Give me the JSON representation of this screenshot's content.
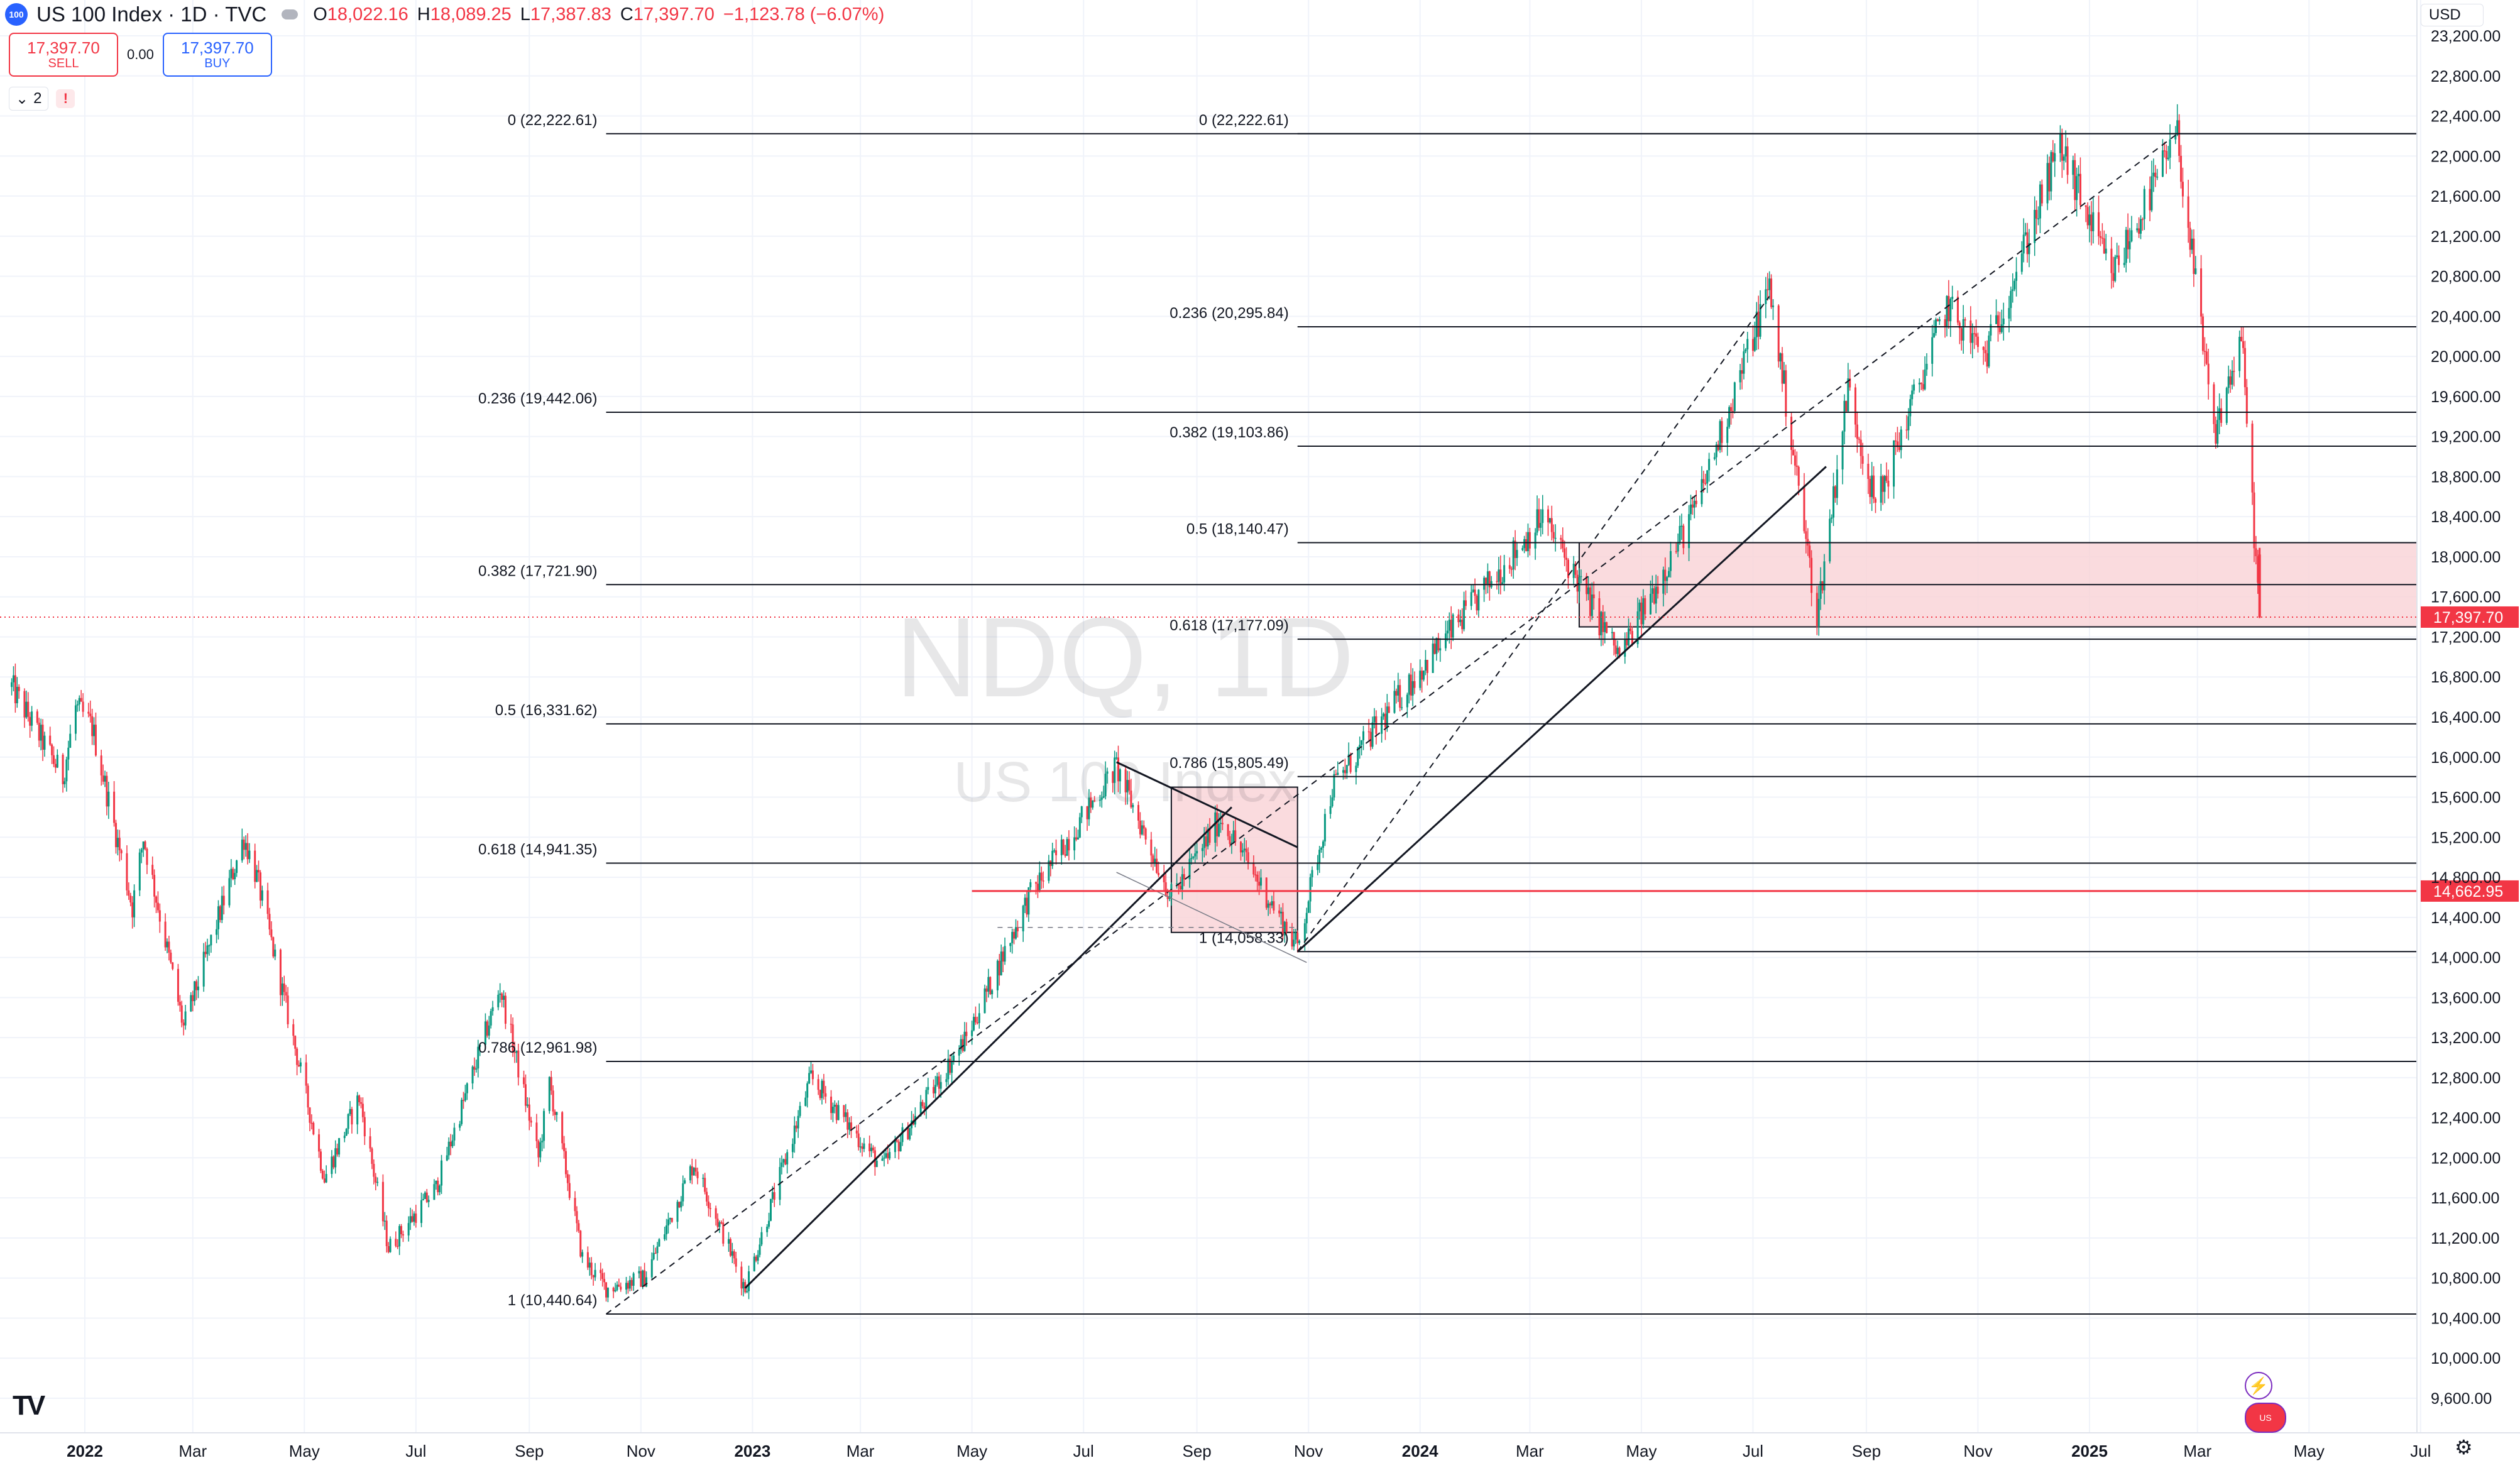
{
  "header": {
    "logo_text": "100",
    "symbol": "US 100 Index · 1D · TVC",
    "ohlc": [
      {
        "k": "O",
        "v": "18,022.16"
      },
      {
        "k": "H",
        "v": "18,089.25"
      },
      {
        "k": "L",
        "v": "17,387.83"
      },
      {
        "k": "C",
        "v": "17,397.70"
      }
    ],
    "change": "−1,123.78 (−6.07%)"
  },
  "trade": {
    "sell_price": "17,397.70",
    "sell_label": "SELL",
    "spread": "0.00",
    "buy_price": "17,397.70",
    "buy_label": "BUY"
  },
  "indicator_toggle": {
    "count": "2",
    "chevron": "chevron-down-icon",
    "warning": "!"
  },
  "currency": "USD",
  "watermark": {
    "main": "NDQ, 1D",
    "sub": "US 100 Index"
  },
  "colors": {
    "up": "#089981",
    "down": "#f23645",
    "current_price": "#f23645",
    "zone_fill": "#f9d2d6",
    "fib_line": "#131722",
    "grid": "#f0f3fa"
  },
  "icons": [
    "tradingview-logo-icon",
    "settings-gear-icon",
    "lightning-icon",
    "us-flag-icon",
    "chevron-down-icon",
    "warning-icon"
  ],
  "chart_data": {
    "type": "candlestick",
    "y_range": [
      9400,
      23200
    ],
    "y_ticks": [
      "9,600.00",
      "10,000.00",
      "10,400.00",
      "10,800.00",
      "11,200.00",
      "11,600.00",
      "12,000.00",
      "12,400.00",
      "12,800.00",
      "13,200.00",
      "13,600.00",
      "14,000.00",
      "14,400.00",
      "14,800.00",
      "15,200.00",
      "15,600.00",
      "16,000.00",
      "16,400.00",
      "16,800.00",
      "17,200.00",
      "17,600.00",
      "18,000.00",
      "18,400.00",
      "18,800.00",
      "19,200.00",
      "19,600.00",
      "20,000.00",
      "20,400.00",
      "20,800.00",
      "21,200.00",
      "21,600.00",
      "22,000.00",
      "22,400.00",
      "22,800.00",
      "23,200.00"
    ],
    "x_ticks": [
      {
        "label": "2022",
        "date": "2022-01-01",
        "bold": true
      },
      {
        "label": "Mar",
        "date": "2022-03-01"
      },
      {
        "label": "May",
        "date": "2022-05-01"
      },
      {
        "label": "Jul",
        "date": "2022-07-01"
      },
      {
        "label": "Sep",
        "date": "2022-09-01"
      },
      {
        "label": "Nov",
        "date": "2022-11-01"
      },
      {
        "label": "2023",
        "date": "2023-01-01",
        "bold": true
      },
      {
        "label": "Mar",
        "date": "2023-03-01"
      },
      {
        "label": "May",
        "date": "2023-05-01"
      },
      {
        "label": "Jul",
        "date": "2023-07-01"
      },
      {
        "label": "Sep",
        "date": "2023-09-01"
      },
      {
        "label": "Nov",
        "date": "2023-11-01"
      },
      {
        "label": "2024",
        "date": "2024-01-01",
        "bold": true
      },
      {
        "label": "Mar",
        "date": "2024-03-01"
      },
      {
        "label": "May",
        "date": "2024-05-01"
      },
      {
        "label": "Jul",
        "date": "2024-07-01"
      },
      {
        "label": "Sep",
        "date": "2024-09-01"
      },
      {
        "label": "Nov",
        "date": "2024-11-01"
      },
      {
        "label": "2025",
        "date": "2025-01-01",
        "bold": true
      },
      {
        "label": "Mar",
        "date": "2025-03-01"
      },
      {
        "label": "May",
        "date": "2025-05-01"
      },
      {
        "label": "Jul",
        "date": "2025-07-01"
      }
    ],
    "price_path": [
      [
        "2021-11-22",
        16700
      ],
      [
        "2021-12-20",
        15800
      ],
      [
        "2021-12-27",
        16500
      ],
      [
        "2022-01-05",
        16300
      ],
      [
        "2022-01-27",
        14500
      ],
      [
        "2022-02-02",
        15200
      ],
      [
        "2022-02-24",
        13300
      ],
      [
        "2022-03-29",
        15200
      ],
      [
        "2022-04-05",
        14800
      ],
      [
        "2022-05-12",
        11800
      ],
      [
        "2022-05-31",
        12600
      ],
      [
        "2022-06-16",
        11100
      ],
      [
        "2022-07-12",
        11700
      ],
      [
        "2022-08-16",
        13700
      ],
      [
        "2022-09-06",
        12000
      ],
      [
        "2022-09-12",
        12750
      ],
      [
        "2022-09-30",
        11000
      ],
      [
        "2022-10-13",
        10700
      ],
      [
        "2022-11-03",
        10800
      ],
      [
        "2022-11-30",
        11950
      ],
      [
        "2022-12-28",
        10700
      ],
      [
        "2023-02-02",
        12800
      ],
      [
        "2023-03-13",
        11900
      ],
      [
        "2023-04-28",
        13200
      ],
      [
        "2023-06-01",
        14600
      ],
      [
        "2023-07-19",
        15900
      ],
      [
        "2023-08-18",
        14600
      ],
      [
        "2023-09-14",
        15400
      ],
      [
        "2023-10-26",
        14100
      ],
      [
        "2023-11-14",
        15700
      ],
      [
        "2023-12-29",
        16800
      ],
      [
        "2024-03-08",
        18400
      ],
      [
        "2024-04-19",
        17000
      ],
      [
        "2024-05-31",
        18500
      ],
      [
        "2024-07-10",
        20700
      ],
      [
        "2024-08-05",
        17400
      ],
      [
        "2024-08-22",
        19700
      ],
      [
        "2024-09-06",
        18500
      ],
      [
        "2024-10-15",
        20500
      ],
      [
        "2024-11-05",
        20000
      ],
      [
        "2024-12-16",
        22100
      ],
      [
        "2025-01-13",
        20800
      ],
      [
        "2025-02-18",
        22200
      ],
      [
        "2025-03-10",
        19200
      ],
      [
        "2025-03-25",
        20200
      ],
      [
        "2025-04-04",
        17397.7
      ]
    ],
    "fib_left": {
      "start": "2022-10-13",
      "end": "2025-07-01",
      "levels": [
        {
          "label": "0 (22,222.61)",
          "value": 22222.61
        },
        {
          "label": "0.236 (19,442.06)",
          "value": 19442.06
        },
        {
          "label": "0.382 (17,721.90)",
          "value": 17721.9
        },
        {
          "label": "0.5 (16,331.62)",
          "value": 16331.62
        },
        {
          "label": "0.618 (14,941.35)",
          "value": 14941.35
        },
        {
          "label": "0.786 (12,961.98)",
          "value": 12961.98
        },
        {
          "label": "1 (10,440.64)",
          "value": 10440.64
        }
      ]
    },
    "fib_right": {
      "start": "2023-10-26",
      "end": "2025-07-01",
      "levels": [
        {
          "label": "0 (22,222.61)",
          "value": 22222.61
        },
        {
          "label": "0.236 (20,295.84)",
          "value": 20295.84
        },
        {
          "label": "0.382 (19,103.86)",
          "value": 19103.86
        },
        {
          "label": "0.5 (18,140.47)",
          "value": 18140.47
        },
        {
          "label": "0.618 (17,177.09)",
          "value": 17177.09
        },
        {
          "label": "0.786 (15,805.49)",
          "value": 15805.49
        },
        {
          "label": "1 (14,058.33)",
          "value": 14058.33
        }
      ]
    },
    "zones": [
      {
        "from": "2023-08-18",
        "to": "2023-10-26",
        "top": 15700,
        "bottom": 14250
      },
      {
        "from": "2024-03-28",
        "to": "2025-07-01",
        "top": 18140.47,
        "bottom": 17300
      }
    ],
    "trendlines": [
      {
        "p1": [
          "2022-10-13",
          10440
        ],
        "p2": [
          "2025-02-18",
          22222
        ],
        "style": "dashed"
      },
      {
        "p1": [
          "2022-12-28",
          10700
        ],
        "p2": [
          "2023-09-20",
          15500
        ],
        "style": "solid"
      },
      {
        "p1": [
          "2023-10-26",
          14058
        ],
        "p2": [
          "2024-08-10",
          18900
        ],
        "style": "solid"
      },
      {
        "p1": [
          "2023-07-19",
          15950
        ],
        "p2": [
          "2023-10-26",
          15100
        ],
        "style": "solid"
      },
      {
        "p1": [
          "2023-05-15",
          14300
        ],
        "p2": [
          "2023-10-26",
          14300
        ],
        "style": "dashed-light"
      },
      {
        "p1": [
          "2023-07-19",
          14850
        ],
        "p2": [
          "2023-10-31",
          13950
        ],
        "style": "solid-light"
      },
      {
        "p1": [
          "2023-10-26",
          14058
        ],
        "p2": [
          "2024-07-10",
          20600
        ],
        "style": "dashed"
      }
    ],
    "horizontal_line": {
      "value": 14662.95,
      "from": "2023-05-01",
      "label": "14,662.95",
      "color": "#f23645"
    },
    "current_price": {
      "value": 17397.7,
      "label": "17,397.70"
    }
  }
}
